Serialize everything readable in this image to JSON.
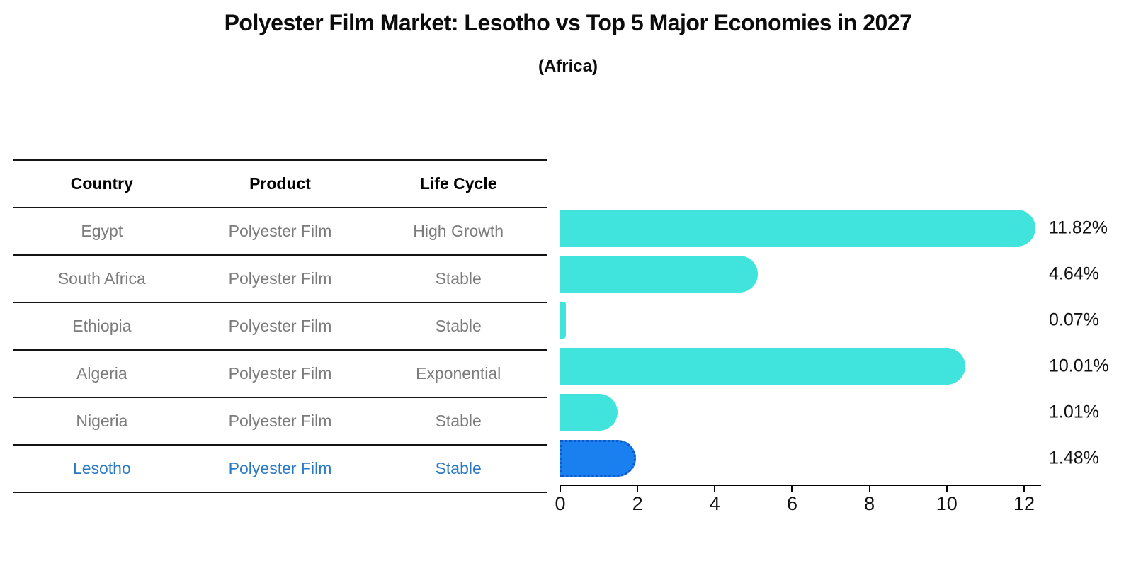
{
  "header": {
    "title": "Polyester Film Market: Lesotho vs Top 5 Major Economies in 2027",
    "subtitle": "(Africa)"
  },
  "table": {
    "columns": [
      "Country",
      "Product",
      "Life Cycle"
    ],
    "rows": [
      {
        "country": "Egypt",
        "product": "Polyester Film",
        "life_cycle": "High Growth",
        "highlight": false
      },
      {
        "country": "South Africa",
        "product": "Polyester Film",
        "life_cycle": "Stable",
        "highlight": false
      },
      {
        "country": "Ethiopia",
        "product": "Polyester Film",
        "life_cycle": "Stable",
        "highlight": false
      },
      {
        "country": "Algeria",
        "product": "Polyester Film",
        "life_cycle": "Exponential",
        "highlight": false
      },
      {
        "country": "Nigeria",
        "product": "Polyester Film",
        "life_cycle": "Stable",
        "highlight": false
      },
      {
        "country": "Lesotho",
        "product": "Polyester Film",
        "life_cycle": "Stable",
        "highlight": true
      }
    ]
  },
  "chart_data": {
    "type": "bar",
    "orientation": "horizontal",
    "title": "Polyester Film Market: Lesotho vs Top 5 Major Economies in 2027 (Africa)",
    "categories": [
      "Egypt",
      "South Africa",
      "Ethiopia",
      "Algeria",
      "Nigeria",
      "Lesotho"
    ],
    "values": [
      11.82,
      4.64,
      0.07,
      10.01,
      1.01,
      1.48
    ],
    "labels": [
      "11.82%",
      "4.64%",
      "0.07%",
      "10.01%",
      "1.01%",
      "1.48%"
    ],
    "unit": "percent",
    "xlim": [
      0,
      12.4
    ],
    "xticks": [
      0,
      2,
      4,
      6,
      8,
      10,
      12
    ],
    "grid": false,
    "legend": "none",
    "highlight_index": 5,
    "colors": {
      "bar_default": "#40e4dc",
      "bar_highlight": "#1a80f0",
      "bar_highlight_border": "#0f57c8",
      "highlight_text": "#2a79c5",
      "table_text": "#7b7b7b",
      "axis_text": "#101010"
    }
  }
}
